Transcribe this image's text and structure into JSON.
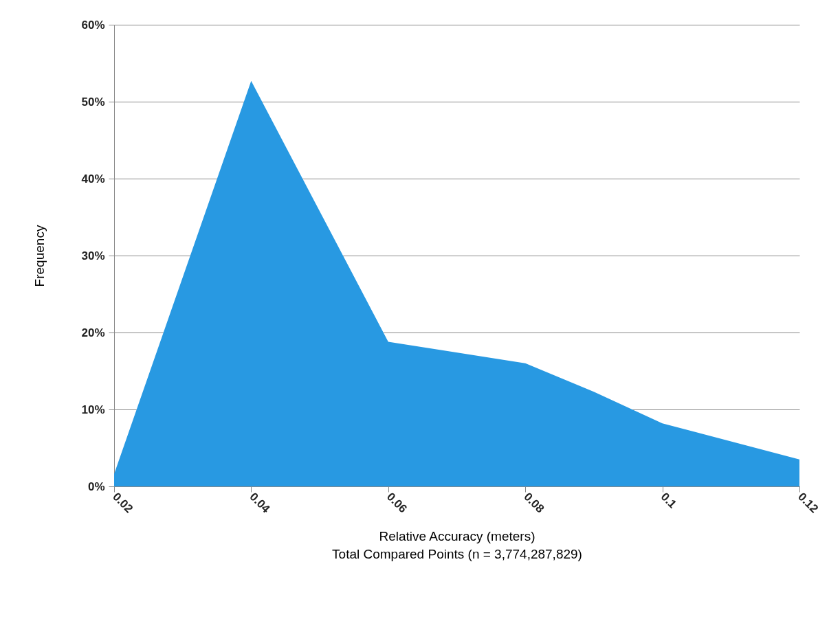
{
  "chart_data": {
    "type": "area",
    "xlabel": "Relative Accuracy (meters)\nTotal Compared Points (n = 3,774,287,829)",
    "ylabel": "Frequency",
    "x": [
      0.02,
      0.04,
      0.06,
      0.08,
      0.09,
      0.1,
      0.12
    ],
    "series": [
      {
        "color": "#2899e2",
        "values": [
          1.6,
          52.7,
          18.8,
          16.0,
          12.3,
          8.2,
          3.5
        ]
      }
    ],
    "xlim": [
      0.02,
      0.12
    ],
    "xticks": [
      0.02,
      0.04,
      0.06,
      0.08,
      0.1,
      0.12
    ],
    "ylim": [
      0,
      60
    ],
    "yticks": [
      {
        "value": 0,
        "label": "0%"
      },
      {
        "value": 10,
        "label": "10%"
      },
      {
        "value": 20,
        "label": "20%"
      },
      {
        "value": 30,
        "label": "30%"
      },
      {
        "value": 40,
        "label": "40%"
      },
      {
        "value": 50,
        "label": "50%"
      },
      {
        "value": 60,
        "label": "60%"
      }
    ],
    "grid": "y"
  }
}
